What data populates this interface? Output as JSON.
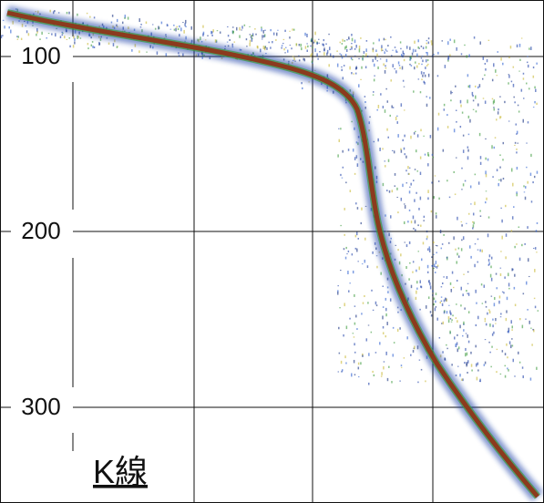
{
  "depth_labels": [
    "100",
    "200",
    "300"
  ],
  "caption": "K線"
}
